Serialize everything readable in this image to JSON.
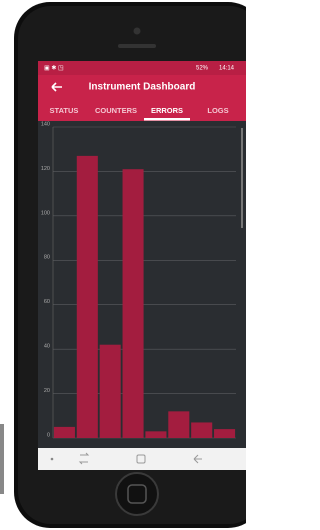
{
  "status_bar": {
    "battery": "52%",
    "time": "14:14"
  },
  "app_bar": {
    "title": "Instrument Dashboard"
  },
  "tabs": [
    "STATUS",
    "COUNTERS",
    "ERRORS",
    "LOGS"
  ],
  "chart_data": {
    "type": "bar",
    "values": [
      5,
      127,
      42,
      121,
      3,
      12,
      7,
      4
    ],
    "color": "#a31d3f",
    "ylim": [
      0,
      140
    ],
    "yticks": [
      0,
      20,
      40,
      60,
      80,
      100,
      120,
      140
    ],
    "grid": true
  }
}
